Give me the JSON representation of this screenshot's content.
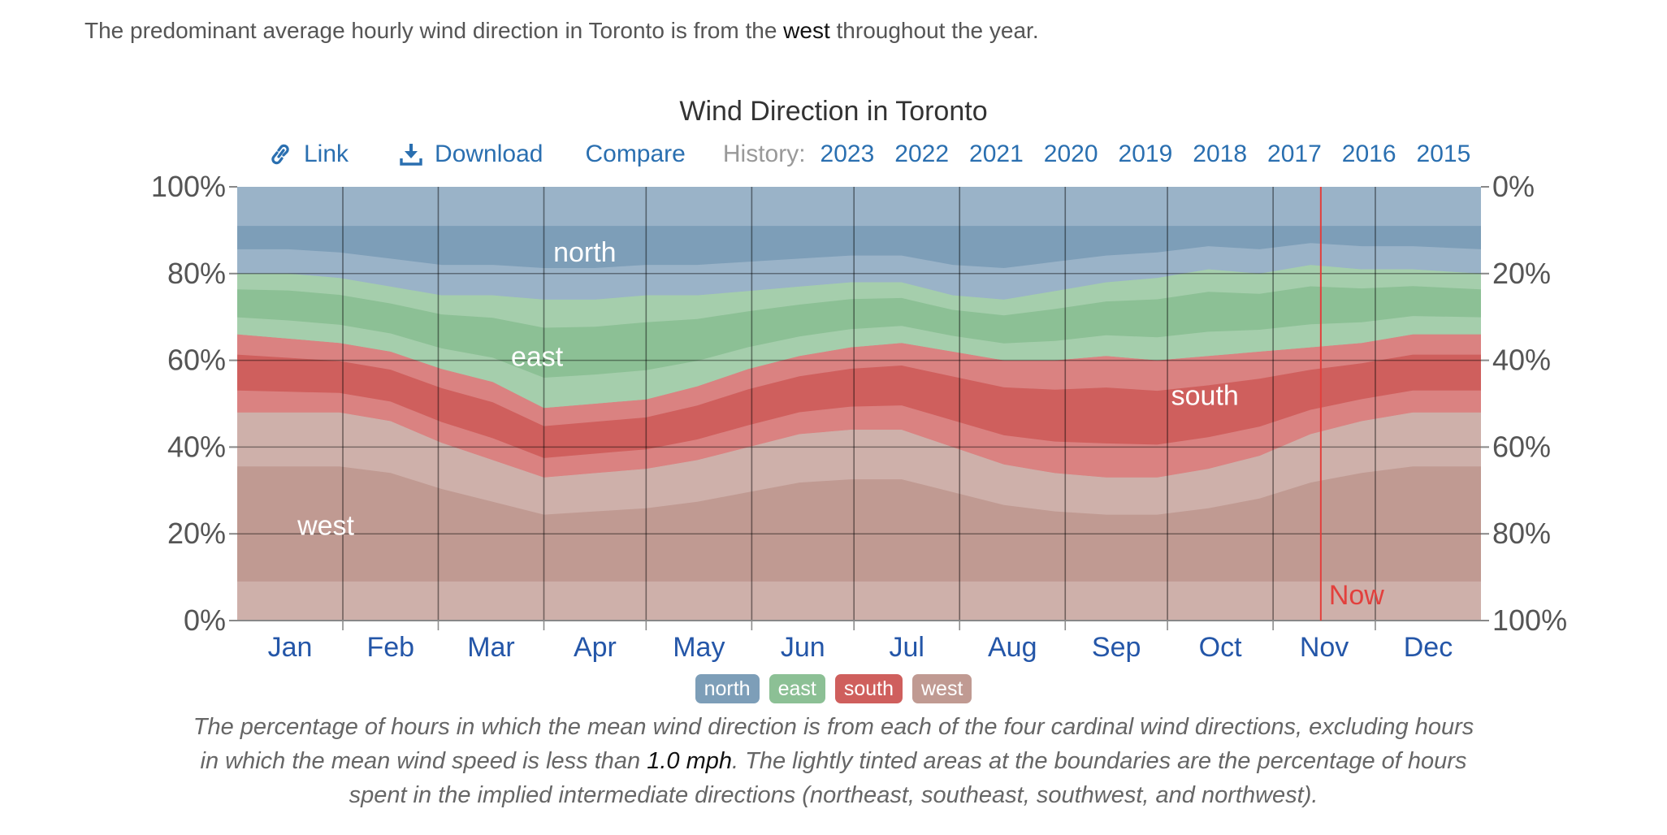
{
  "intro": {
    "before": "The predominant average hourly wind direction in Toronto is from the ",
    "emph": "west",
    "after": " throughout the year."
  },
  "toolbar": {
    "link_label": "Link",
    "download_label": "Download",
    "compare_label": "Compare",
    "history_label": "History:",
    "years": [
      "2023",
      "2022",
      "2021",
      "2020",
      "2019",
      "2018",
      "2017",
      "2016",
      "2015"
    ]
  },
  "legend": [
    {
      "label": "north",
      "color": "#7d9eb8"
    },
    {
      "label": "east",
      "color": "#8cc095"
    },
    {
      "label": "south",
      "color": "#cf5f5d"
    },
    {
      "label": "west",
      "color": "#c09a92"
    }
  ],
  "caption": {
    "part1": "The percentage of hours in which the mean wind direction is from each of the four cardinal wind directions, excluding hours in which the mean wind speed is less than ",
    "emph": "1.0 mph",
    "part2": ". The lightly tinted areas at the boundaries are the percentage of hours spent in the implied intermediate directions (northeast, southeast, southwest, and northwest)."
  },
  "chart_data": {
    "type": "area",
    "title": "Wind Direction in Toronto",
    "x_months": [
      "Jan",
      "Feb",
      "Mar",
      "Apr",
      "May",
      "Jun",
      "Jul",
      "Aug",
      "Sep",
      "Oct",
      "Nov",
      "Dec"
    ],
    "y_left_ticks": [
      "0%",
      "20%",
      "40%",
      "60%",
      "80%",
      "100%"
    ],
    "y_right_ticks": [
      "100%",
      "80%",
      "60%",
      "40%",
      "20%",
      "0%"
    ],
    "ylim": [
      0,
      100
    ],
    "grid": true,
    "now_label": "Now",
    "now_day": 318,
    "area_labels": [
      {
        "text": "north",
        "day": 102,
        "pct": 85
      },
      {
        "text": "east",
        "day": 88,
        "pct": 61
      },
      {
        "text": "south",
        "day": 284,
        "pct": 52
      },
      {
        "text": "west",
        "day": 26,
        "pct": 22
      }
    ],
    "days": [
      0,
      15,
      30,
      45,
      60,
      75,
      90,
      105,
      120,
      135,
      150,
      165,
      180,
      195,
      210,
      225,
      240,
      255,
      270,
      285,
      300,
      315,
      330,
      345,
      365
    ],
    "series": [
      {
        "name": "west",
        "color": "#c09a92",
        "values": [
          48,
          48,
          48,
          46,
          41,
          37,
          33,
          34,
          35,
          37,
          40,
          43,
          44,
          44,
          40,
          36,
          34,
          33,
          33,
          35,
          38,
          43,
          46,
          48,
          48
        ]
      },
      {
        "name": "south",
        "color": "#cf5f5d",
        "values": [
          18,
          17,
          16,
          16,
          17,
          18,
          16,
          16,
          16,
          17,
          18,
          18,
          19,
          20,
          22,
          24,
          26,
          28,
          27,
          26,
          24,
          20,
          18,
          18,
          18
        ]
      },
      {
        "name": "east",
        "color": "#8cc095",
        "values": [
          14,
          15,
          15,
          15,
          17,
          20,
          25,
          24,
          24,
          21,
          18,
          16,
          15,
          14,
          13,
          14,
          16,
          17,
          19,
          20,
          18,
          19,
          17,
          15,
          14
        ]
      },
      {
        "name": "north",
        "color": "#7d9eb8",
        "values": [
          20,
          20,
          21,
          23,
          25,
          25,
          26,
          26,
          25,
          25,
          24,
          23,
          22,
          22,
          25,
          26,
          24,
          22,
          21,
          19,
          20,
          18,
          19,
          19,
          20
        ]
      }
    ]
  }
}
